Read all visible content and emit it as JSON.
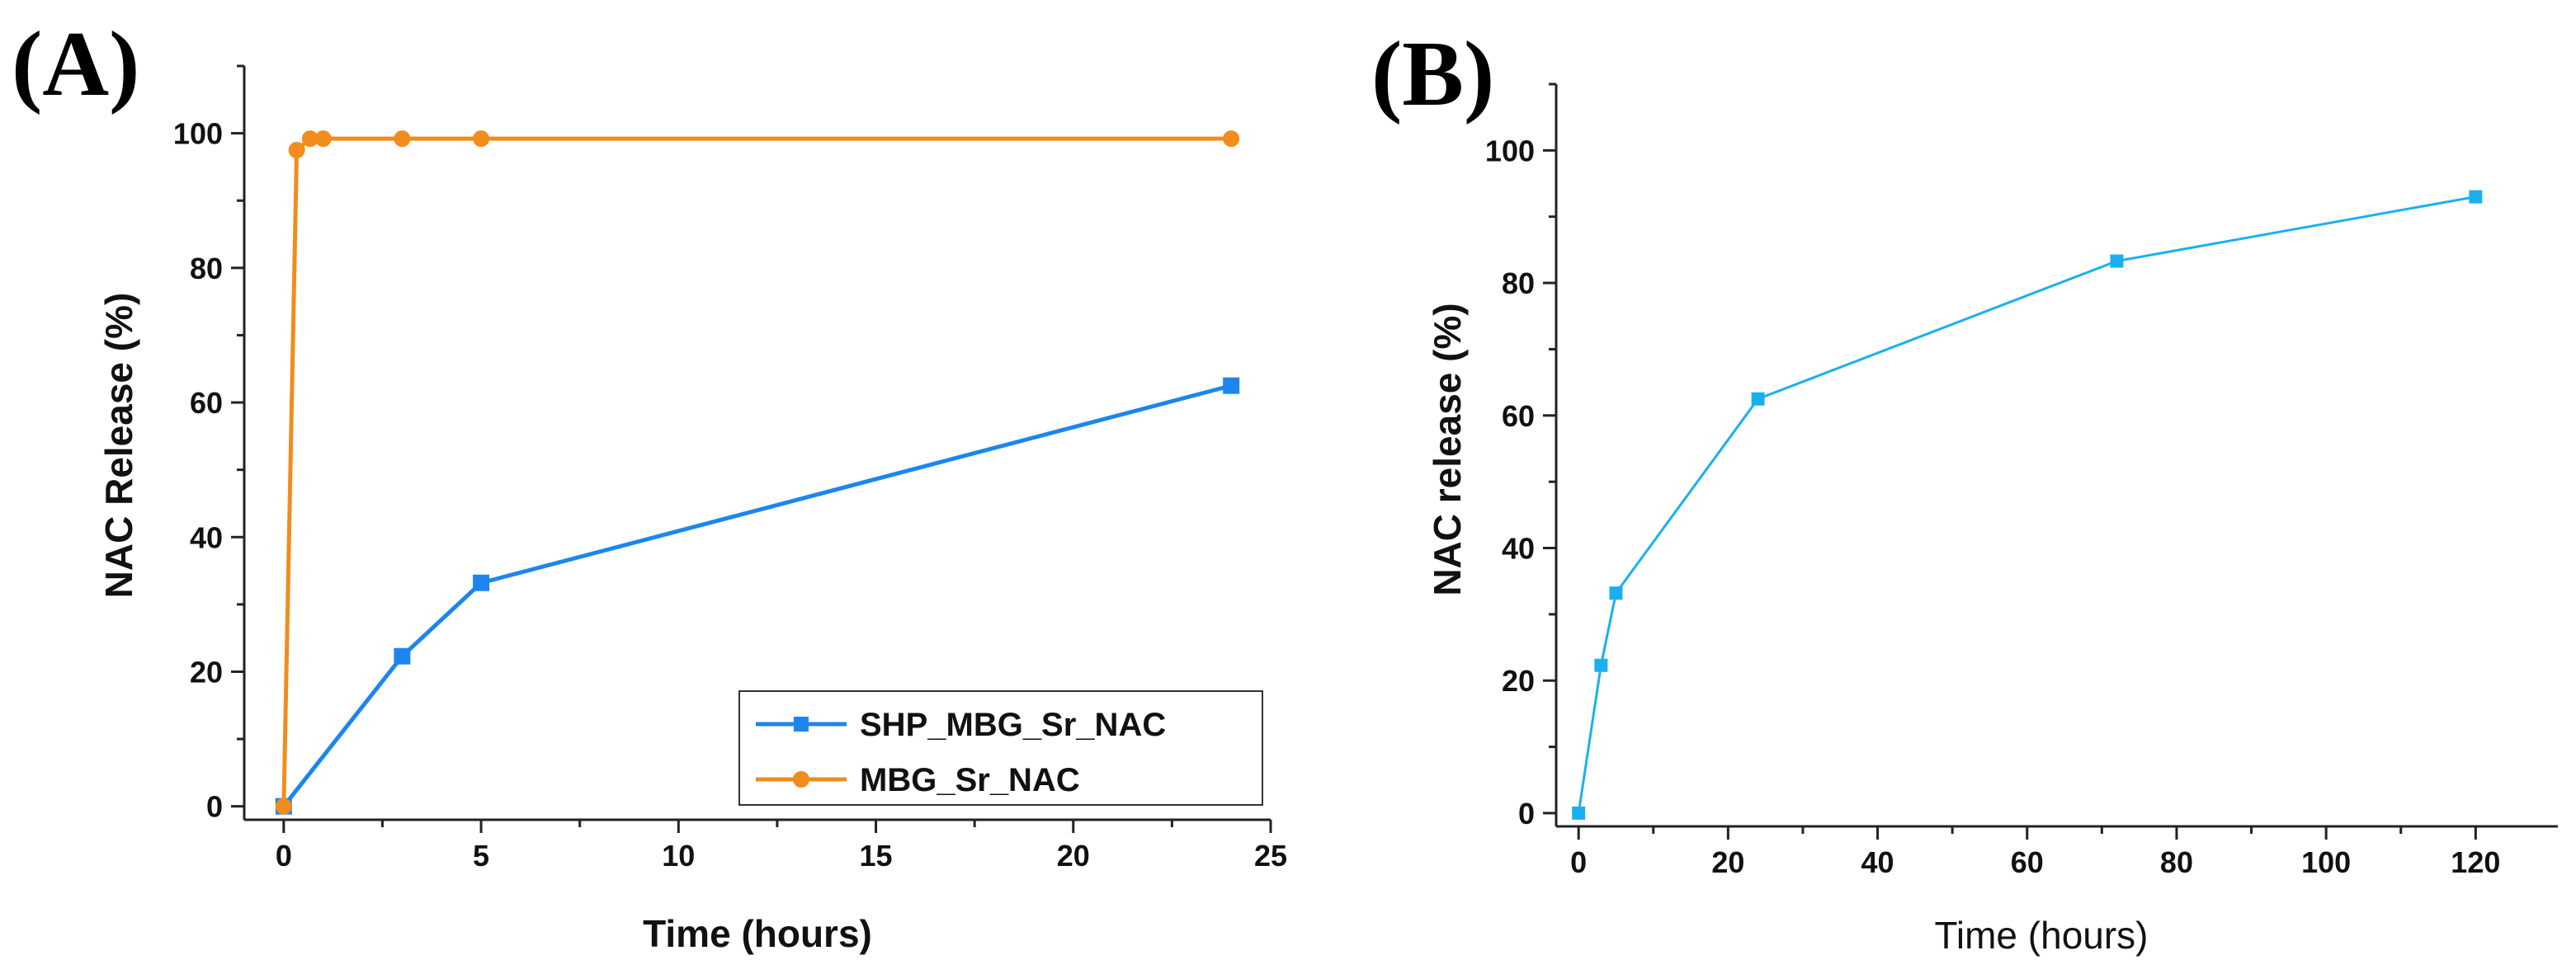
{
  "chart_data": [
    {
      "type": "line",
      "panel_label": "(A)",
      "xlabel": "Time (hours)",
      "ylabel": "NAC Release (%)",
      "xlim": [
        -1,
        25
      ],
      "ylim": [
        -2,
        110
      ],
      "x_ticks": [
        0,
        5,
        10,
        15,
        20,
        25
      ],
      "y_ticks": [
        0,
        20,
        40,
        60,
        80,
        100
      ],
      "x_tick_labels": [
        "0",
        "5",
        "10",
        "15",
        "20",
        "25"
      ],
      "y_tick_labels": [
        "0",
        "20",
        "40",
        "60",
        "80",
        "100"
      ],
      "legend_position": "bottom-right",
      "series": [
        {
          "name": "SHP_MBG_Sr_NAC",
          "color": "#1c86ee",
          "marker": "square",
          "x": [
            0,
            3,
            5,
            24
          ],
          "values": [
            0,
            22.3,
            33.2,
            62.5
          ]
        },
        {
          "name": "MBG_Sr_NAC",
          "color": "#f28c1c",
          "marker": "circle",
          "x": [
            0,
            0.33,
            0.67,
            1,
            3,
            5,
            24
          ],
          "values": [
            0,
            97.5,
            99.2,
            99.2,
            99.2,
            99.2,
            99.2
          ]
        }
      ]
    },
    {
      "type": "line",
      "panel_label": "(B)",
      "xlabel": "Time (hours)",
      "ylabel": "NAC release (%)",
      "xlim": [
        -3,
        131
      ],
      "ylim": [
        -2,
        110
      ],
      "x_ticks": [
        0,
        20,
        40,
        60,
        80,
        100,
        120
      ],
      "y_ticks": [
        0,
        20,
        40,
        60,
        80,
        100
      ],
      "x_tick_labels": [
        "0",
        "20",
        "40",
        "60",
        "80",
        "100",
        "120"
      ],
      "y_tick_labels": [
        "0",
        "20",
        "40",
        "60",
        "80",
        "100"
      ],
      "series": [
        {
          "name": "NAC release",
          "color": "#1ab0f0",
          "marker": "square",
          "x": [
            0,
            3,
            5,
            24,
            72,
            120
          ],
          "values": [
            0,
            22.3,
            33.2,
            62.5,
            83.3,
            93
          ]
        }
      ]
    }
  ]
}
